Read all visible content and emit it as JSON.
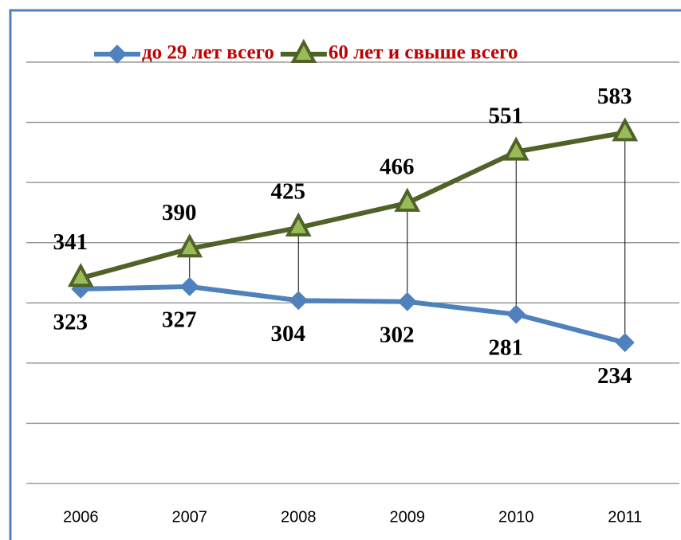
{
  "chart_data": {
    "type": "line",
    "categories": [
      "2006",
      "2007",
      "2008",
      "2009",
      "2010",
      "2011"
    ],
    "series": [
      {
        "name": "до 29 лет всего",
        "color": "#4f81bd",
        "values": [
          323,
          327,
          304,
          302,
          281,
          234
        ]
      },
      {
        "name": "60 лет и свыше всего",
        "color": "#4f6228",
        "values": [
          341,
          390,
          425,
          466,
          551,
          583
        ]
      }
    ],
    "ylim": [
      0,
      700
    ],
    "yticks": [
      0,
      100,
      200,
      300,
      400,
      500,
      600,
      700
    ],
    "grid": true,
    "legend": "top"
  }
}
